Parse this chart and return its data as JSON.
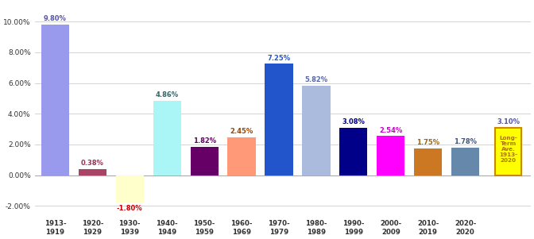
{
  "categories": [
    "1913-\n1919",
    "1920-\n1929",
    "1930-\n1939",
    "1940-\n1949",
    "1950-\n1959",
    "1960-\n1969",
    "1970-\n1979",
    "1980-\n1989",
    "1990-\n1999",
    "2000-\n2009",
    "2010-\n2019",
    "2020-\n2020"
  ],
  "values": [
    9.8,
    0.38,
    -1.8,
    4.86,
    1.82,
    2.45,
    7.25,
    5.82,
    3.08,
    2.54,
    1.75,
    1.78
  ],
  "bar_colors": [
    "#9999ee",
    "#aa4466",
    "#ffffcc",
    "#aaf5f5",
    "#660066",
    "#ff9977",
    "#2255cc",
    "#aabbdd",
    "#000088",
    "#ff00ff",
    "#cc7722",
    "#6688aa"
  ],
  "label_colors": [
    "#5555aa",
    "#993355",
    "#cc0000",
    "#336666",
    "#660066",
    "#994400",
    "#2255cc",
    "#5566aa",
    "#000088",
    "#cc00cc",
    "#996611",
    "#445577"
  ],
  "long_term_value": 3.1,
  "long_term_label": "Long-\nTerm\nAve.\n1913-\n2020",
  "long_term_bar_color": "#ffff00",
  "long_term_border_color": "#cc8800",
  "long_term_text_color": "#aa7700",
  "long_term_value_color": "#5555aa",
  "ylim": [
    -2.8,
    11.2
  ],
  "yticks": [
    -2.0,
    0.0,
    2.0,
    4.0,
    6.0,
    8.0,
    10.0
  ],
  "background_color": "#ffffff",
  "grid_color": "#cccccc"
}
